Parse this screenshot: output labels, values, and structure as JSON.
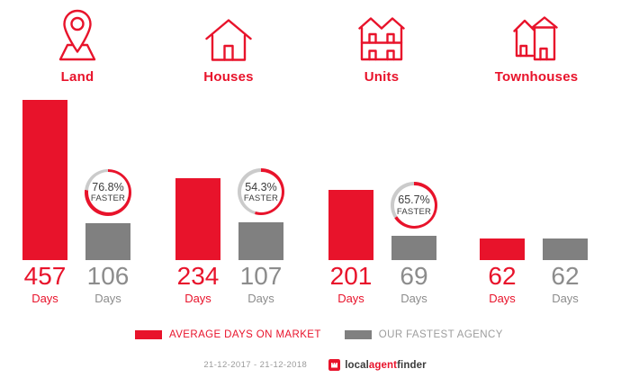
{
  "colors": {
    "red": "#e8132b",
    "gray": "#808080",
    "ring_gray": "#cbcbcb",
    "badge_text": "#3c3c3c",
    "num_gray": "#8c8c8c",
    "legend_gray": "#9d9d9d",
    "date_gray": "#9b9b9b",
    "logo_dark": "#3b3b3b"
  },
  "labels": {
    "days_unit": "Days",
    "faster_suffix": "FASTER"
  },
  "categories": [
    {
      "label": "Land",
      "icon": "map-pin-icon",
      "avg_days": 457,
      "fastest_days": 106,
      "faster_pct": "76.8%"
    },
    {
      "label": "Houses",
      "icon": "house-icon",
      "avg_days": 234,
      "fastest_days": 107,
      "faster_pct": "54.3%"
    },
    {
      "label": "Units",
      "icon": "duplex-icon",
      "avg_days": 201,
      "fastest_days": 69,
      "faster_pct": "65.7%"
    },
    {
      "label": "Townhouses",
      "icon": "townhouses-icon",
      "avg_days": 62,
      "fastest_days": 62,
      "faster_pct": null
    }
  ],
  "legend": {
    "avg_label": "AVERAGE DAYS ON MARKET",
    "fastest_label": "OUR FASTEST AGENCY"
  },
  "footer": {
    "date_range": "21-12-2017 - 21-12-2018",
    "logo": {
      "part1": "local",
      "part2": "agent",
      "part3": "finder"
    }
  },
  "chart_data": {
    "type": "bar",
    "categories": [
      "Land",
      "Houses",
      "Units",
      "Townhouses"
    ],
    "series": [
      {
        "name": "AVERAGE DAYS ON MARKET",
        "color": "#e8132b",
        "values": [
          457,
          234,
          201,
          62
        ]
      },
      {
        "name": "OUR FASTEST AGENCY",
        "color": "#808080",
        "values": [
          106,
          107,
          69,
          62
        ]
      }
    ],
    "unit": "Days",
    "annotations": [
      {
        "category": "Land",
        "text": "76.8% FASTER"
      },
      {
        "category": "Houses",
        "text": "54.3% FASTER"
      },
      {
        "category": "Units",
        "text": "65.7% FASTER"
      }
    ],
    "ylim": [
      0,
      457
    ],
    "grid": false,
    "legend_position": "bottom",
    "date_range": "21-12-2017 - 21-12-2018"
  }
}
